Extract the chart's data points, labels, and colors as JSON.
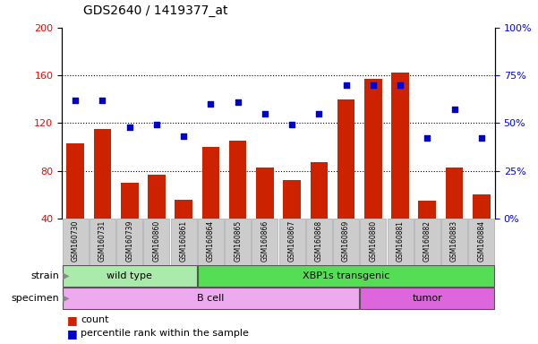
{
  "title": "GDS2640 / 1419377_at",
  "samples": [
    "GSM160730",
    "GSM160731",
    "GSM160739",
    "GSM160860",
    "GSM160861",
    "GSM160864",
    "GSM160865",
    "GSM160866",
    "GSM160867",
    "GSM160868",
    "GSM160869",
    "GSM160880",
    "GSM160881",
    "GSM160882",
    "GSM160883",
    "GSM160884"
  ],
  "counts": [
    103,
    115,
    70,
    77,
    56,
    100,
    105,
    83,
    72,
    87,
    140,
    157,
    162,
    55,
    83,
    60
  ],
  "percentiles": [
    62,
    62,
    48,
    49,
    43,
    60,
    61,
    55,
    49,
    55,
    70,
    70,
    70,
    42,
    57,
    42
  ],
  "bar_bottom": 40,
  "ylim_left": [
    40,
    200
  ],
  "ylim_right": [
    0,
    100
  ],
  "yticks_left": [
    40,
    80,
    120,
    160,
    200
  ],
  "yticks_right": [
    0,
    25,
    50,
    75,
    100
  ],
  "yticklabels_right": [
    "0%",
    "25%",
    "50%",
    "75%",
    "100%"
  ],
  "bar_color": "#cc2200",
  "dot_color": "#0000cc",
  "strain_groups": [
    {
      "label": "wild type",
      "start": 0,
      "end": 4,
      "color": "#aaeaaa"
    },
    {
      "label": "XBP1s transgenic",
      "start": 5,
      "end": 15,
      "color": "#55dd55"
    }
  ],
  "specimen_groups": [
    {
      "label": "B cell",
      "start": 0,
      "end": 10,
      "color": "#eeaaee"
    },
    {
      "label": "tumor",
      "start": 11,
      "end": 15,
      "color": "#dd66dd"
    }
  ],
  "strain_label": "strain",
  "specimen_label": "specimen",
  "legend_count_label": "count",
  "legend_pct_label": "percentile rank within the sample",
  "tick_bg_color": "#cccccc",
  "background_color": "#ffffff",
  "fig_width": 6.01,
  "fig_height": 3.84,
  "dpi": 100
}
